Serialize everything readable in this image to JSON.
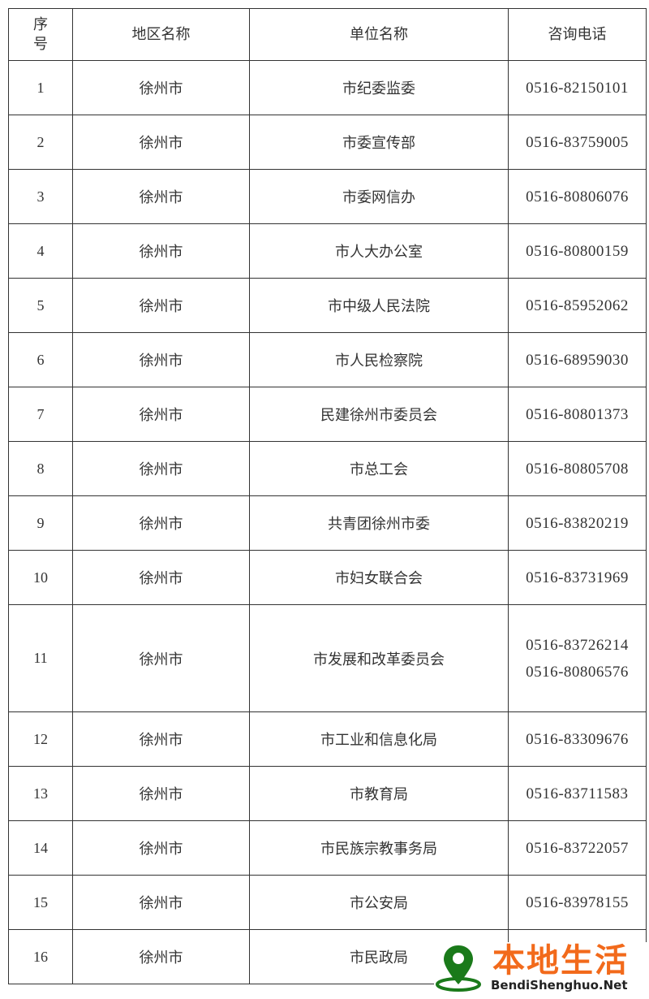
{
  "headers": {
    "seq": "序号",
    "region": "地区名称",
    "unit": "单位名称",
    "phone": "咨询电话"
  },
  "rows": [
    {
      "seq": "1",
      "region": "徐州市",
      "unit": "市纪委监委",
      "phones": [
        "0516-82150101"
      ]
    },
    {
      "seq": "2",
      "region": "徐州市",
      "unit": "市委宣传部",
      "phones": [
        "0516-83759005"
      ]
    },
    {
      "seq": "3",
      "region": "徐州市",
      "unit": "市委网信办",
      "phones": [
        "0516-80806076"
      ]
    },
    {
      "seq": "4",
      "region": "徐州市",
      "unit": "市人大办公室",
      "phones": [
        "0516-80800159"
      ]
    },
    {
      "seq": "5",
      "region": "徐州市",
      "unit": "市中级人民法院",
      "phones": [
        "0516-85952062"
      ]
    },
    {
      "seq": "6",
      "region": "徐州市",
      "unit": "市人民检察院",
      "phones": [
        "0516-68959030"
      ]
    },
    {
      "seq": "7",
      "region": "徐州市",
      "unit": "民建徐州市委员会",
      "phones": [
        "0516-80801373"
      ]
    },
    {
      "seq": "8",
      "region": "徐州市",
      "unit": "市总工会",
      "phones": [
        "0516-80805708"
      ]
    },
    {
      "seq": "9",
      "region": "徐州市",
      "unit": "共青团徐州市委",
      "phones": [
        "0516-83820219"
      ]
    },
    {
      "seq": "10",
      "region": "徐州市",
      "unit": "市妇女联合会",
      "phones": [
        "0516-83731969"
      ]
    },
    {
      "seq": "11",
      "region": "徐州市",
      "unit": "市发展和改革委员会",
      "phones": [
        "0516-83726214",
        "0516-80806576"
      ]
    },
    {
      "seq": "12",
      "region": "徐州市",
      "unit": "市工业和信息化局",
      "phones": [
        "0516-83309676"
      ]
    },
    {
      "seq": "13",
      "region": "徐州市",
      "unit": "市教育局",
      "phones": [
        "0516-83711583"
      ]
    },
    {
      "seq": "14",
      "region": "徐州市",
      "unit": "市民族宗教事务局",
      "phones": [
        "0516-83722057"
      ]
    },
    {
      "seq": "15",
      "region": "徐州市",
      "unit": "市公安局",
      "phones": [
        "0516-83978155"
      ]
    },
    {
      "seq": "16",
      "region": "徐州市",
      "unit": "市民政局",
      "phones": []
    }
  ],
  "watermark": {
    "title": "本地生活",
    "url": "BendiShenghuo.Net",
    "title_color": "#f26a1b",
    "pin_color": "#1a7a1a"
  }
}
